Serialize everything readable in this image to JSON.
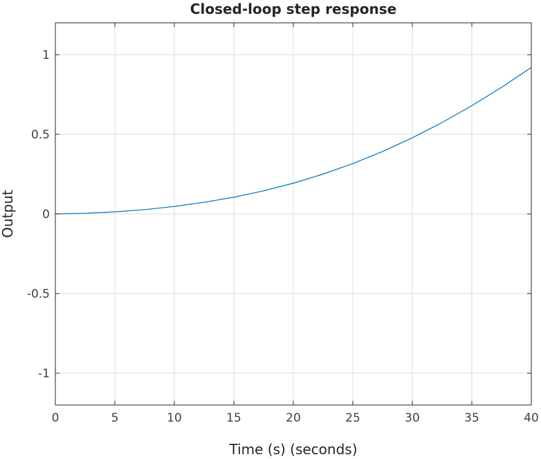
{
  "chart_data": {
    "type": "line",
    "title": "Closed-loop step response",
    "xlabel": "Time (s) (seconds)",
    "ylabel": "Output",
    "xlim": [
      0,
      40
    ],
    "ylim": [
      -1.2,
      1.2
    ],
    "grid": true,
    "xticks": [
      0,
      5,
      10,
      15,
      20,
      25,
      30,
      35,
      40
    ],
    "xtick_labels": [
      "0",
      "5",
      "10",
      "15",
      "20",
      "25",
      "30",
      "35",
      "40"
    ],
    "yticks": [
      -1,
      -0.5,
      0,
      0.5,
      1
    ],
    "ytick_labels": [
      "-1",
      "-0.5",
      "0",
      "0.5",
      "1"
    ],
    "series": [
      {
        "color": "#0072bd",
        "x": [
          0,
          2.5,
          5,
          7.5,
          10,
          12.5,
          15,
          17.5,
          20,
          22.5,
          25,
          27.5,
          30,
          32.5,
          35,
          37.5,
          40
        ],
        "values": [
          0,
          0.004,
          0.013,
          0.027,
          0.047,
          0.073,
          0.105,
          0.145,
          0.193,
          0.25,
          0.316,
          0.392,
          0.478,
          0.574,
          0.68,
          0.795,
          0.92
        ]
      }
    ]
  }
}
